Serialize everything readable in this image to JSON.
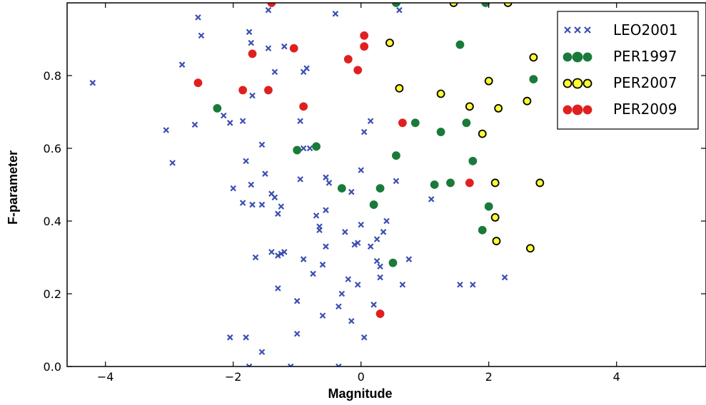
{
  "chart_data": {
    "type": "scatter",
    "xlabel": "Magnitude",
    "ylabel": "F-parameter",
    "xlim": [
      -4.6,
      5.4
    ],
    "ylim": [
      0.0,
      1.0
    ],
    "x_ticks": [
      -4,
      -2,
      0,
      2,
      4
    ],
    "x_tick_labels": [
      "−4",
      "−2",
      "0",
      "2",
      "4"
    ],
    "y_ticks": [
      0.0,
      0.2,
      0.4,
      0.6,
      0.8
    ],
    "y_tick_labels": [
      "0.0",
      "0.2",
      "0.4",
      "0.6",
      "0.8"
    ],
    "grid": false,
    "legend_position": "top-right",
    "series": [
      {
        "name": "LEO2001",
        "marker": "x",
        "color": "#3a4fb0",
        "points": [
          [
            -4.2,
            0.78
          ],
          [
            -3.05,
            0.65
          ],
          [
            -2.95,
            0.56
          ],
          [
            -2.8,
            0.83
          ],
          [
            -2.55,
            0.96
          ],
          [
            -2.5,
            0.91
          ],
          [
            -2.6,
            0.665
          ],
          [
            -2.15,
            0.69
          ],
          [
            -2.05,
            0.67
          ],
          [
            -2.0,
            0.49
          ],
          [
            -2.05,
            0.08
          ],
          [
            -1.85,
            0.675
          ],
          [
            -1.8,
            0.565
          ],
          [
            -1.85,
            0.45
          ],
          [
            -1.8,
            0.08
          ],
          [
            -1.75,
            0.92
          ],
          [
            -1.72,
            0.89
          ],
          [
            -1.7,
            0.745
          ],
          [
            -1.72,
            0.5
          ],
          [
            -1.7,
            0.445
          ],
          [
            -1.75,
            0.0
          ],
          [
            -1.65,
            0.3
          ],
          [
            -1.55,
            0.61
          ],
          [
            -1.55,
            0.445
          ],
          [
            -1.55,
            0.04
          ],
          [
            -1.5,
            0.53
          ],
          [
            -1.45,
            0.98
          ],
          [
            -1.45,
            0.875
          ],
          [
            -1.4,
            0.475
          ],
          [
            -1.4,
            0.315
          ],
          [
            -1.35,
            0.81
          ],
          [
            -1.35,
            0.465
          ],
          [
            -1.3,
            0.42
          ],
          [
            -1.3,
            0.215
          ],
          [
            -1.3,
            0.305
          ],
          [
            -1.25,
            0.44
          ],
          [
            -1.25,
            0.31
          ],
          [
            -1.2,
            0.88
          ],
          [
            -1.2,
            0.315
          ],
          [
            -1.1,
            0.0
          ],
          [
            -1.0,
            0.18
          ],
          [
            -1.0,
            0.09
          ],
          [
            -0.95,
            0.675
          ],
          [
            -0.95,
            0.515
          ],
          [
            -0.9,
            0.81
          ],
          [
            -0.9,
            0.6
          ],
          [
            -0.9,
            0.295
          ],
          [
            -0.85,
            0.82
          ],
          [
            -0.8,
            0.6
          ],
          [
            -0.75,
            0.255
          ],
          [
            -0.7,
            0.415
          ],
          [
            -0.65,
            0.375
          ],
          [
            -0.65,
            0.385
          ],
          [
            -0.6,
            0.28
          ],
          [
            -0.6,
            0.14
          ],
          [
            -0.55,
            0.43
          ],
          [
            -0.55,
            0.52
          ],
          [
            -0.55,
            0.33
          ],
          [
            -0.5,
            0.505
          ],
          [
            -0.4,
            0.97
          ],
          [
            -0.35,
            0.165
          ],
          [
            -0.35,
            0.0
          ],
          [
            -0.3,
            0.2
          ],
          [
            -0.25,
            0.37
          ],
          [
            -0.2,
            0.24
          ],
          [
            -0.15,
            0.48
          ],
          [
            -0.15,
            0.125
          ],
          [
            -0.1,
            0.335
          ],
          [
            -0.05,
            0.34
          ],
          [
            -0.05,
            0.225
          ],
          [
            0.0,
            0.39
          ],
          [
            0.0,
            0.54
          ],
          [
            0.05,
            0.645
          ],
          [
            0.05,
            0.08
          ],
          [
            0.15,
            0.33
          ],
          [
            0.15,
            0.675
          ],
          [
            0.2,
            0.17
          ],
          [
            0.25,
            0.35
          ],
          [
            0.25,
            0.29
          ],
          [
            0.3,
            0.275
          ],
          [
            0.3,
            0.245
          ],
          [
            0.35,
            0.37
          ],
          [
            0.4,
            0.4
          ],
          [
            0.55,
            0.51
          ],
          [
            0.6,
            0.98
          ],
          [
            0.65,
            0.225
          ],
          [
            0.75,
            0.295
          ],
          [
            1.1,
            0.46
          ],
          [
            1.55,
            0.225
          ],
          [
            1.75,
            0.225
          ],
          [
            2.25,
            0.245
          ]
        ]
      },
      {
        "name": "PER1997",
        "marker": "o",
        "color": "#1a7a3a",
        "edge": "#1a7a3a",
        "points": [
          [
            -2.25,
            0.71
          ],
          [
            -1.0,
            0.595
          ],
          [
            -0.7,
            0.605
          ],
          [
            -0.3,
            0.49
          ],
          [
            0.2,
            0.445
          ],
          [
            0.3,
            0.49
          ],
          [
            0.5,
            0.285
          ],
          [
            0.55,
            0.58
          ],
          [
            0.55,
            1.0
          ],
          [
            0.85,
            0.67
          ],
          [
            1.15,
            0.5
          ],
          [
            1.25,
            0.645
          ],
          [
            1.4,
            0.505
          ],
          [
            1.55,
            0.885
          ],
          [
            1.65,
            0.67
          ],
          [
            1.75,
            0.565
          ],
          [
            1.9,
            0.375
          ],
          [
            2.0,
            0.44
          ],
          [
            1.95,
            1.0
          ],
          [
            2.7,
            0.79
          ]
        ]
      },
      {
        "name": "PER2007",
        "marker": "o",
        "color": "#ffff30",
        "edge": "#000000",
        "points": [
          [
            0.45,
            0.89
          ],
          [
            0.6,
            0.765
          ],
          [
            1.25,
            0.75
          ],
          [
            1.45,
            1.0
          ],
          [
            1.7,
            0.715
          ],
          [
            1.9,
            0.64
          ],
          [
            2.0,
            0.785
          ],
          [
            2.1,
            0.505
          ],
          [
            2.1,
            0.41
          ],
          [
            2.12,
            0.345
          ],
          [
            2.15,
            0.71
          ],
          [
            2.3,
            1.0
          ],
          [
            2.6,
            0.73
          ],
          [
            2.65,
            0.325
          ],
          [
            2.7,
            0.85
          ],
          [
            2.8,
            0.505
          ]
        ]
      },
      {
        "name": "PER2009",
        "marker": "o",
        "color": "#e02020",
        "edge": "#e02020",
        "points": [
          [
            -2.55,
            0.78
          ],
          [
            -1.85,
            0.76
          ],
          [
            -1.7,
            0.86
          ],
          [
            -1.45,
            0.76
          ],
          [
            -1.4,
            1.0
          ],
          [
            -1.05,
            0.875
          ],
          [
            -0.9,
            0.715
          ],
          [
            -0.2,
            0.845
          ],
          [
            -0.05,
            0.815
          ],
          [
            0.05,
            0.91
          ],
          [
            0.05,
            0.88
          ],
          [
            0.3,
            0.145
          ],
          [
            0.65,
            0.67
          ],
          [
            1.7,
            0.505
          ]
        ]
      }
    ]
  }
}
